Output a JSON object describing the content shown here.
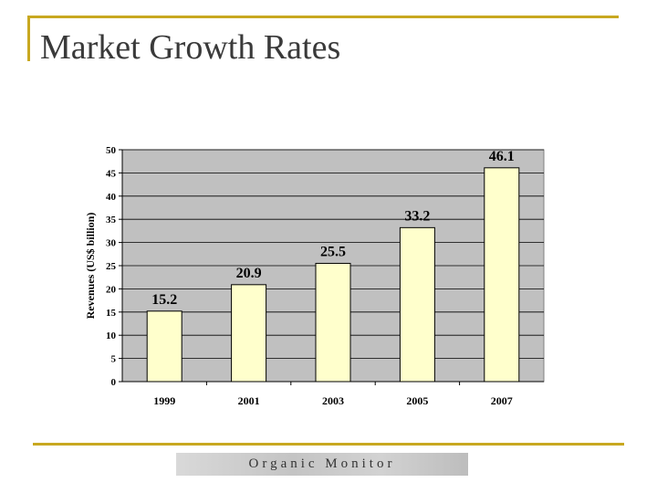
{
  "slide": {
    "title": "Market Growth Rates"
  },
  "chart_data": {
    "type": "bar",
    "title": "",
    "xlabel": "",
    "ylabel": "Revenues  (US$ billion)",
    "categories": [
      "1999",
      "2001",
      "2003",
      "2005",
      "2007"
    ],
    "values": [
      15.2,
      20.9,
      25.5,
      33.2,
      46.1
    ],
    "data_labels": [
      "15.2",
      "20.9",
      "25.5",
      "33.2",
      "46.1"
    ],
    "ylim": [
      0,
      50
    ],
    "yticks": [
      0,
      5,
      10,
      15,
      20,
      25,
      30,
      35,
      40,
      45,
      50
    ],
    "grid": true,
    "colors": {
      "bar": "#ffffcc",
      "plot_bg": "#c0c0c0",
      "grid": "#000000"
    }
  },
  "footer": {
    "logo_text": "Organic Monitor"
  }
}
